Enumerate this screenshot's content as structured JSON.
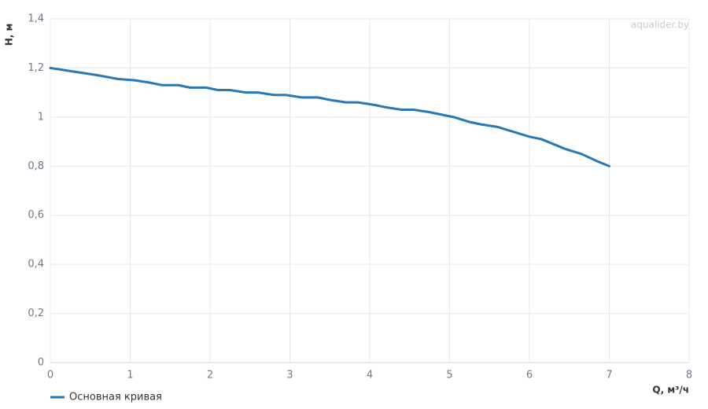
{
  "chart_data": {
    "type": "line",
    "xlabel": "Q, м³/ч",
    "ylabel": "H, м",
    "watermark": "aqualider.by",
    "x": [
      0,
      0.3,
      0.6,
      0.85,
      1.05,
      1.25,
      1.4,
      1.6,
      1.75,
      1.95,
      2.1,
      2.25,
      2.45,
      2.6,
      2.8,
      2.95,
      3.15,
      3.35,
      3.5,
      3.7,
      3.85,
      4.05,
      4.2,
      4.4,
      4.55,
      4.75,
      4.9,
      5.05,
      5.25,
      5.4,
      5.6,
      5.8,
      6,
      6.15,
      6.3,
      6.45,
      6.65,
      6.85,
      7
    ],
    "series": [
      {
        "name": "Основная кривая",
        "color": "#2878b5",
        "values": [
          1.2,
          1.185,
          1.17,
          1.155,
          1.15,
          1.14,
          1.13,
          1.13,
          1.12,
          1.12,
          1.11,
          1.11,
          1.1,
          1.1,
          1.09,
          1.09,
          1.08,
          1.08,
          1.07,
          1.06,
          1.06,
          1.05,
          1.04,
          1.03,
          1.03,
          1.02,
          1.01,
          1.0,
          0.98,
          0.97,
          0.96,
          0.94,
          0.92,
          0.91,
          0.89,
          0.87,
          0.85,
          0.82,
          0.8
        ]
      }
    ],
    "xlim": [
      0,
      8
    ],
    "xticks": [
      0,
      1,
      2,
      3,
      4,
      5,
      6,
      7,
      8
    ],
    "ylim": [
      0,
      1.4
    ],
    "yticks": [
      0,
      {
        "value": 0.2,
        "label": "0,2"
      },
      {
        "value": 0.4,
        "label": "0,4"
      },
      {
        "value": 0.6,
        "label": "0,6"
      },
      {
        "value": 0.8,
        "label": "0,8"
      },
      1,
      {
        "value": 1.2,
        "label": "1,2"
      },
      {
        "value": 1.4,
        "label": "1,4"
      }
    ],
    "grid": true
  }
}
